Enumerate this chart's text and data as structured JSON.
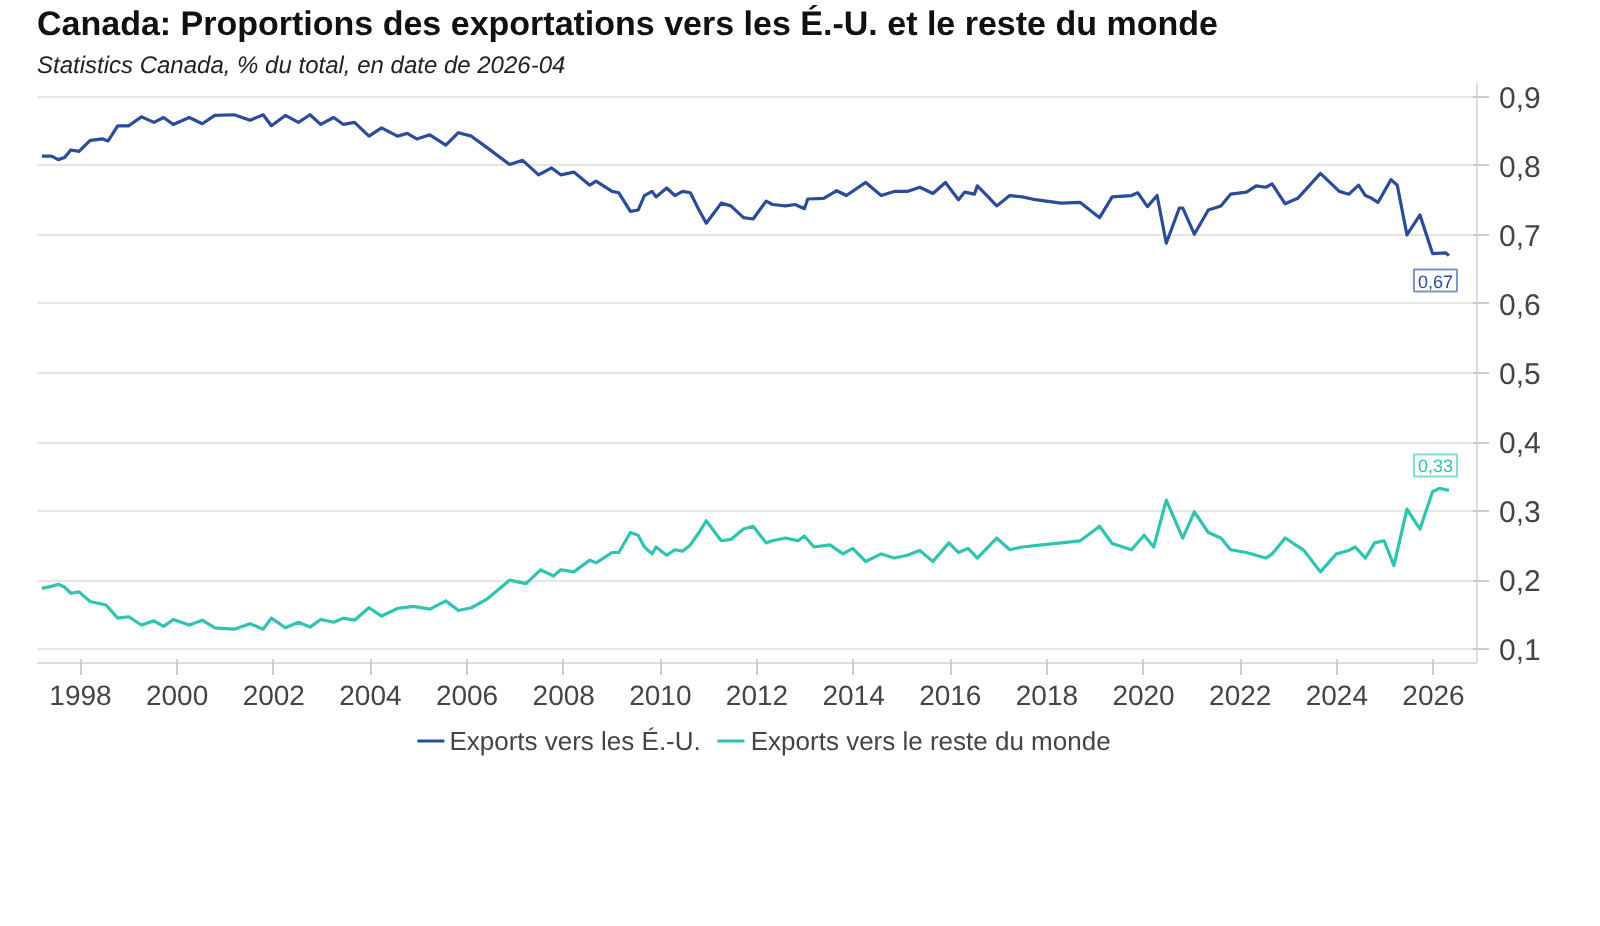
{
  "chart_data": {
    "type": "line",
    "title": "Canada: Proportions des exportations vers les É.-U. et le reste du monde",
    "subtitle": "Statistics Canada, % du total, en date de 2026-04",
    "xlim": [
      1997.1,
      2026.9
    ],
    "xticks": [
      {
        "value": 1998,
        "label": "1998"
      },
      {
        "value": 2000,
        "label": "2000"
      },
      {
        "value": 2002,
        "label": "2002"
      },
      {
        "value": 2004,
        "label": "2004"
      },
      {
        "value": 2006,
        "label": "2006"
      },
      {
        "value": 2008,
        "label": "2008"
      },
      {
        "value": 2010,
        "label": "2010"
      },
      {
        "value": 2012,
        "label": "2012"
      },
      {
        "value": 2014,
        "label": "2014"
      },
      {
        "value": 2016,
        "label": "2016"
      },
      {
        "value": 2018,
        "label": "2018"
      },
      {
        "value": 2020,
        "label": "2020"
      },
      {
        "value": 2022,
        "label": "2022"
      },
      {
        "value": 2024,
        "label": "2024"
      },
      {
        "value": 2026,
        "label": "2026"
      }
    ],
    "ylim": [
      0.08,
      0.92
    ],
    "yticks": [
      {
        "value": 0.1,
        "label": "0,1"
      },
      {
        "value": 0.2,
        "label": "0,2"
      },
      {
        "value": 0.3,
        "label": "0,3"
      },
      {
        "value": 0.4,
        "label": "0,4"
      },
      {
        "value": 0.5,
        "label": "0,5"
      },
      {
        "value": 0.6,
        "label": "0,6"
      },
      {
        "value": 0.7,
        "label": "0,7"
      },
      {
        "value": 0.8,
        "label": "0,8"
      },
      {
        "value": 0.9,
        "label": "0,9"
      }
    ],
    "grid": "y",
    "legend": "bottom",
    "marker": "none",
    "line_style": "solid",
    "annotations": [
      {
        "text": "0,67",
        "x": 2026.32,
        "y": 0.67
      },
      {
        "text": "0,33",
        "x": 2026.32,
        "y": 0.33
      }
    ],
    "series": [
      {
        "name": "Exports vers les É.-U.",
        "color": "#2b4c9b",
        "x": [
          1997.2,
          1997.4,
          1997.54,
          1997.67,
          1997.8,
          1997.97,
          1998.2,
          1998.46,
          1998.57,
          1998.77,
          1999.0,
          1999.26,
          1999.52,
          1999.72,
          1999.92,
          2000.25,
          2000.52,
          2000.78,
          2001.18,
          2001.51,
          2001.78,
          2001.95,
          2002.24,
          2002.51,
          2002.75,
          2002.97,
          2003.24,
          2003.44,
          2003.67,
          2003.97,
          2004.23,
          2004.56,
          2004.76,
          2004.96,
          2005.23,
          2005.56,
          2005.82,
          2006.09,
          2006.42,
          2006.88,
          2007.15,
          2007.48,
          2007.75,
          2007.94,
          2008.21,
          2008.54,
          2008.67,
          2009.0,
          2009.14,
          2009.38,
          2009.54,
          2009.67,
          2009.83,
          2009.91,
          2010.13,
          2010.3,
          2010.46,
          2010.62,
          2010.8,
          2010.95,
          2011.26,
          2011.46,
          2011.72,
          2011.92,
          2012.19,
          2012.32,
          2012.59,
          2012.79,
          2012.98,
          2013.05,
          2013.38,
          2013.65,
          2013.85,
          2014.25,
          2014.57,
          2014.84,
          2015.11,
          2015.37,
          2015.64,
          2015.9,
          2016.17,
          2016.3,
          2016.5,
          2016.56,
          2016.76,
          2016.96,
          2017.23,
          2017.49,
          2017.76,
          2018.29,
          2018.69,
          2019.09,
          2019.35,
          2019.75,
          2019.88,
          2020.08,
          2020.28,
          2020.47,
          2020.74,
          2020.81,
          2021.05,
          2021.34,
          2021.6,
          2021.8,
          2022.13,
          2022.33,
          2022.53,
          2022.66,
          2022.93,
          2023.19,
          2023.66,
          2024.05,
          2024.25,
          2024.45,
          2024.59,
          2024.72,
          2024.85,
          2025.12,
          2025.25,
          2025.45,
          2025.72,
          2025.98,
          2026.25,
          2026.32
        ],
        "values": [
          0.814,
          0.814,
          0.809,
          0.812,
          0.823,
          0.821,
          0.837,
          0.839,
          0.836,
          0.858,
          0.858,
          0.871,
          0.863,
          0.87,
          0.86,
          0.87,
          0.861,
          0.873,
          0.874,
          0.866,
          0.874,
          0.858,
          0.873,
          0.863,
          0.874,
          0.86,
          0.87,
          0.86,
          0.863,
          0.843,
          0.855,
          0.843,
          0.847,
          0.839,
          0.845,
          0.83,
          0.848,
          0.843,
          0.826,
          0.802,
          0.808,
          0.787,
          0.797,
          0.787,
          0.791,
          0.772,
          0.778,
          0.763,
          0.761,
          0.734,
          0.736,
          0.757,
          0.763,
          0.755,
          0.768,
          0.757,
          0.763,
          0.761,
          0.736,
          0.717,
          0.746,
          0.742,
          0.725,
          0.723,
          0.749,
          0.744,
          0.742,
          0.744,
          0.738,
          0.752,
          0.753,
          0.764,
          0.757,
          0.776,
          0.757,
          0.763,
          0.763,
          0.769,
          0.76,
          0.776,
          0.751,
          0.762,
          0.759,
          0.771,
          0.757,
          0.742,
          0.757,
          0.755,
          0.751,
          0.746,
          0.747,
          0.725,
          0.755,
          0.757,
          0.761,
          0.741,
          0.757,
          0.688,
          0.739,
          0.739,
          0.701,
          0.736,
          0.742,
          0.759,
          0.762,
          0.771,
          0.769,
          0.774,
          0.745,
          0.753,
          0.789,
          0.763,
          0.759,
          0.772,
          0.757,
          0.753,
          0.747,
          0.78,
          0.772,
          0.7,
          0.729,
          0.673,
          0.674,
          0.67
        ]
      },
      {
        "name": "Exports vers le reste du monde",
        "color": "#2ec4b0",
        "x": [
          1997.2,
          1997.4,
          1997.54,
          1997.67,
          1997.8,
          1997.97,
          1998.2,
          1998.53,
          1998.77,
          1999.0,
          1999.26,
          1999.52,
          1999.72,
          1999.92,
          2000.25,
          2000.52,
          2000.78,
          2001.18,
          2001.51,
          2001.78,
          2001.95,
          2002.24,
          2002.51,
          2002.75,
          2002.97,
          2003.24,
          2003.44,
          2003.67,
          2003.97,
          2004.23,
          2004.56,
          2004.89,
          2005.23,
          2005.56,
          2005.82,
          2006.09,
          2006.42,
          2006.88,
          2007.22,
          2007.52,
          2007.79,
          2007.94,
          2008.21,
          2008.54,
          2008.67,
          2009.0,
          2009.14,
          2009.38,
          2009.54,
          2009.67,
          2009.83,
          2009.91,
          2010.13,
          2010.3,
          2010.46,
          2010.62,
          2010.8,
          2010.95,
          2011.26,
          2011.46,
          2011.72,
          2011.92,
          2012.19,
          2012.32,
          2012.59,
          2012.85,
          2012.98,
          2013.18,
          2013.51,
          2013.78,
          2013.98,
          2014.25,
          2014.57,
          2014.84,
          2015.11,
          2015.37,
          2015.64,
          2015.97,
          2016.17,
          2016.37,
          2016.56,
          2016.96,
          2017.23,
          2017.49,
          2017.89,
          2018.29,
          2018.69,
          2019.09,
          2019.35,
          2019.75,
          2020.01,
          2020.21,
          2020.47,
          2020.81,
          2021.05,
          2021.34,
          2021.6,
          2021.8,
          2022.13,
          2022.53,
          2022.66,
          2022.93,
          2023.32,
          2023.66,
          2023.99,
          2024.25,
          2024.38,
          2024.59,
          2024.78,
          2024.98,
          2025.18,
          2025.45,
          2025.72,
          2025.98,
          2026.12,
          2026.32
        ],
        "values": [
          0.188,
          0.191,
          0.194,
          0.19,
          0.181,
          0.183,
          0.169,
          0.164,
          0.145,
          0.147,
          0.135,
          0.141,
          0.133,
          0.143,
          0.135,
          0.142,
          0.131,
          0.129,
          0.137,
          0.129,
          0.145,
          0.131,
          0.139,
          0.132,
          0.143,
          0.139,
          0.145,
          0.142,
          0.16,
          0.148,
          0.159,
          0.162,
          0.158,
          0.17,
          0.156,
          0.16,
          0.173,
          0.2,
          0.195,
          0.215,
          0.206,
          0.215,
          0.212,
          0.229,
          0.225,
          0.24,
          0.24,
          0.269,
          0.265,
          0.248,
          0.238,
          0.248,
          0.236,
          0.244,
          0.242,
          0.251,
          0.269,
          0.286,
          0.257,
          0.259,
          0.274,
          0.278,
          0.254,
          0.257,
          0.261,
          0.257,
          0.264,
          0.248,
          0.251,
          0.238,
          0.246,
          0.227,
          0.238,
          0.232,
          0.236,
          0.243,
          0.227,
          0.254,
          0.24,
          0.246,
          0.232,
          0.261,
          0.244,
          0.248,
          0.251,
          0.254,
          0.257,
          0.278,
          0.253,
          0.244,
          0.265,
          0.248,
          0.316,
          0.261,
          0.299,
          0.269,
          0.261,
          0.244,
          0.24,
          0.232,
          0.238,
          0.261,
          0.243,
          0.212,
          0.238,
          0.243,
          0.248,
          0.232,
          0.254,
          0.257,
          0.221,
          0.303,
          0.274,
          0.328,
          0.333,
          0.33
        ]
      }
    ]
  }
}
